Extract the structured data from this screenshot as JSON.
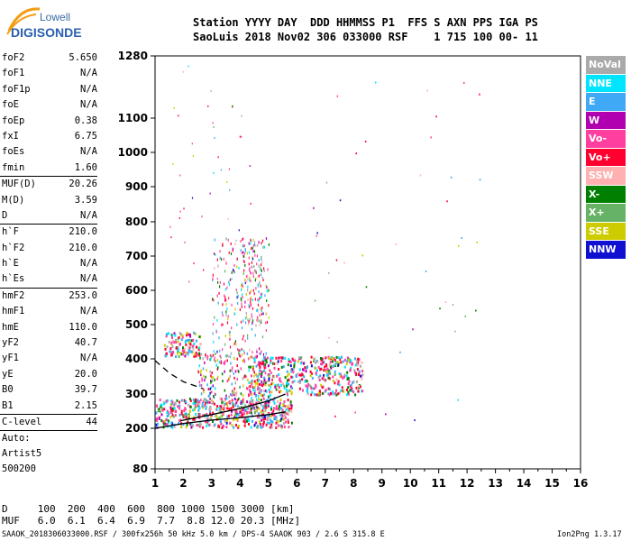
{
  "logo": {
    "line1": "Lowell",
    "line2": "DIGISONDE"
  },
  "header": {
    "line1": "Station YYYY DAY  DDD HHMMSS P1  FFS S AXN PPS IGA PS",
    "line2": "SaoLuis 2018 Nov02 306 033000 RSF    1 715 100 00- 11"
  },
  "left_panel": {
    "group1": [
      {
        "name": "foF2",
        "value": "5.650"
      },
      {
        "name": "foF1",
        "value": "N/A"
      },
      {
        "name": "foF1p",
        "value": "N/A"
      },
      {
        "name": "foE",
        "value": "N/A"
      },
      {
        "name": "foEp",
        "value": "0.38"
      },
      {
        "name": "fxI",
        "value": "6.75"
      },
      {
        "name": "foEs",
        "value": "N/A"
      },
      {
        "name": "fmin",
        "value": "1.60"
      }
    ],
    "group2": [
      {
        "name": "MUF(D)",
        "value": "20.26"
      },
      {
        "name": "M(D)",
        "value": "3.59"
      },
      {
        "name": "D",
        "value": "N/A"
      }
    ],
    "group3": [
      {
        "name": "h`F",
        "value": "210.0"
      },
      {
        "name": "h`F2",
        "value": "210.0"
      },
      {
        "name": "h`E",
        "value": "N/A"
      },
      {
        "name": "h`Es",
        "value": "N/A"
      }
    ],
    "group4": [
      {
        "name": "hmF2",
        "value": "253.0"
      },
      {
        "name": "hmF1",
        "value": "N/A"
      },
      {
        "name": "hmE",
        "value": "110.0"
      },
      {
        "name": "yF2",
        "value": "40.7"
      },
      {
        "name": "yF1",
        "value": "N/A"
      },
      {
        "name": "yE",
        "value": "20.0"
      },
      {
        "name": "B0",
        "value": "39.7"
      },
      {
        "name": "B1",
        "value": "2.15"
      }
    ],
    "clevel": {
      "name": "C-level",
      "value": "44"
    },
    "auto_lines": [
      "Auto:",
      "Artist5",
      "500200"
    ]
  },
  "legend": [
    {
      "label": "NoVal",
      "color": "#aaaaaa",
      "text": "#ffffff"
    },
    {
      "label": "NNE",
      "color": "#00e5ff",
      "text": "#ffffff"
    },
    {
      "label": "E",
      "color": "#3fa9f5",
      "text": "#ffffff"
    },
    {
      "label": "W",
      "color": "#b000b0",
      "text": "#ffffff"
    },
    {
      "label": "Vo-",
      "color": "#ff3fa0",
      "text": "#ffffff"
    },
    {
      "label": "Vo+",
      "color": "#ff0030",
      "text": "#ffffff"
    },
    {
      "label": "SSW",
      "color": "#ffb0b0",
      "text": "#ffffff"
    },
    {
      "label": "X-",
      "color": "#007f00",
      "text": "#ffffff"
    },
    {
      "label": "X+",
      "color": "#66b266",
      "text": "#ffffff"
    },
    {
      "label": "SSE",
      "color": "#cccc00",
      "text": "#ffffff"
    },
    {
      "label": "NNW",
      "color": "#1010d0",
      "text": "#ffffff"
    }
  ],
  "chart_data": {
    "type": "scatter",
    "xlabel": "",
    "ylabel": "",
    "xlim": [
      1,
      16
    ],
    "x_ticks": [
      "1",
      "2",
      "3",
      "4",
      "5",
      "6",
      "7",
      "8",
      "9",
      "10",
      "11",
      "12",
      "13",
      "14",
      "15",
      "16"
    ],
    "y_ticks": [
      "80",
      "200",
      "300",
      "400",
      "500",
      "600",
      "700",
      "800",
      "900",
      "1000",
      "1100",
      "1280"
    ],
    "y_scale": "nonlinear-ionogram",
    "grid": false,
    "traces": [
      {
        "name": "lower-h-trace",
        "points": [
          [
            1,
            200
          ],
          [
            2,
            214
          ],
          [
            3,
            224
          ],
          [
            4,
            231
          ],
          [
            5,
            240
          ],
          [
            5.6,
            248
          ]
        ]
      },
      {
        "name": "upper-trace",
        "points": [
          [
            1.9,
            222
          ],
          [
            3,
            240
          ],
          [
            4,
            258
          ],
          [
            5,
            280
          ],
          [
            5.6,
            300
          ]
        ]
      },
      {
        "name": "dashed-trace",
        "points": [
          [
            1,
            395
          ],
          [
            1.5,
            360
          ],
          [
            2,
            335
          ],
          [
            2.7,
            315
          ]
        ]
      }
    ]
  },
  "scale_table": {
    "row1": "D     100  200  400  600  800 1000 1500 3000 [km]",
    "row2": "MUF   6.0  6.1  6.4  6.9  7.7  8.8 12.0 20.3 [MHz]"
  },
  "footer": {
    "left": "SAAOK_2018306033000.RSF / 300fx256h 50 kHz 5.0 km / DPS-4 SAAOK 903 / 2.6 S 315.8 E",
    "right": "Ion2Png 1.3.17"
  }
}
